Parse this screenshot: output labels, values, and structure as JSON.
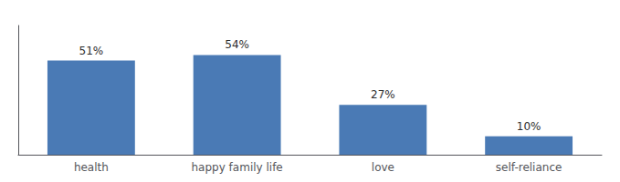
{
  "chart_data": {
    "type": "bar",
    "categories": [
      "health",
      "happy family life",
      "love",
      "self-reliance"
    ],
    "values": [
      51,
      54,
      27,
      10
    ],
    "value_labels": [
      "51%",
      "54%",
      "27%",
      "10%"
    ],
    "color": "#4a7ab5",
    "ylim": [
      0,
      70
    ],
    "data_labels": true,
    "tick_labels": "x",
    "grid": false
  }
}
